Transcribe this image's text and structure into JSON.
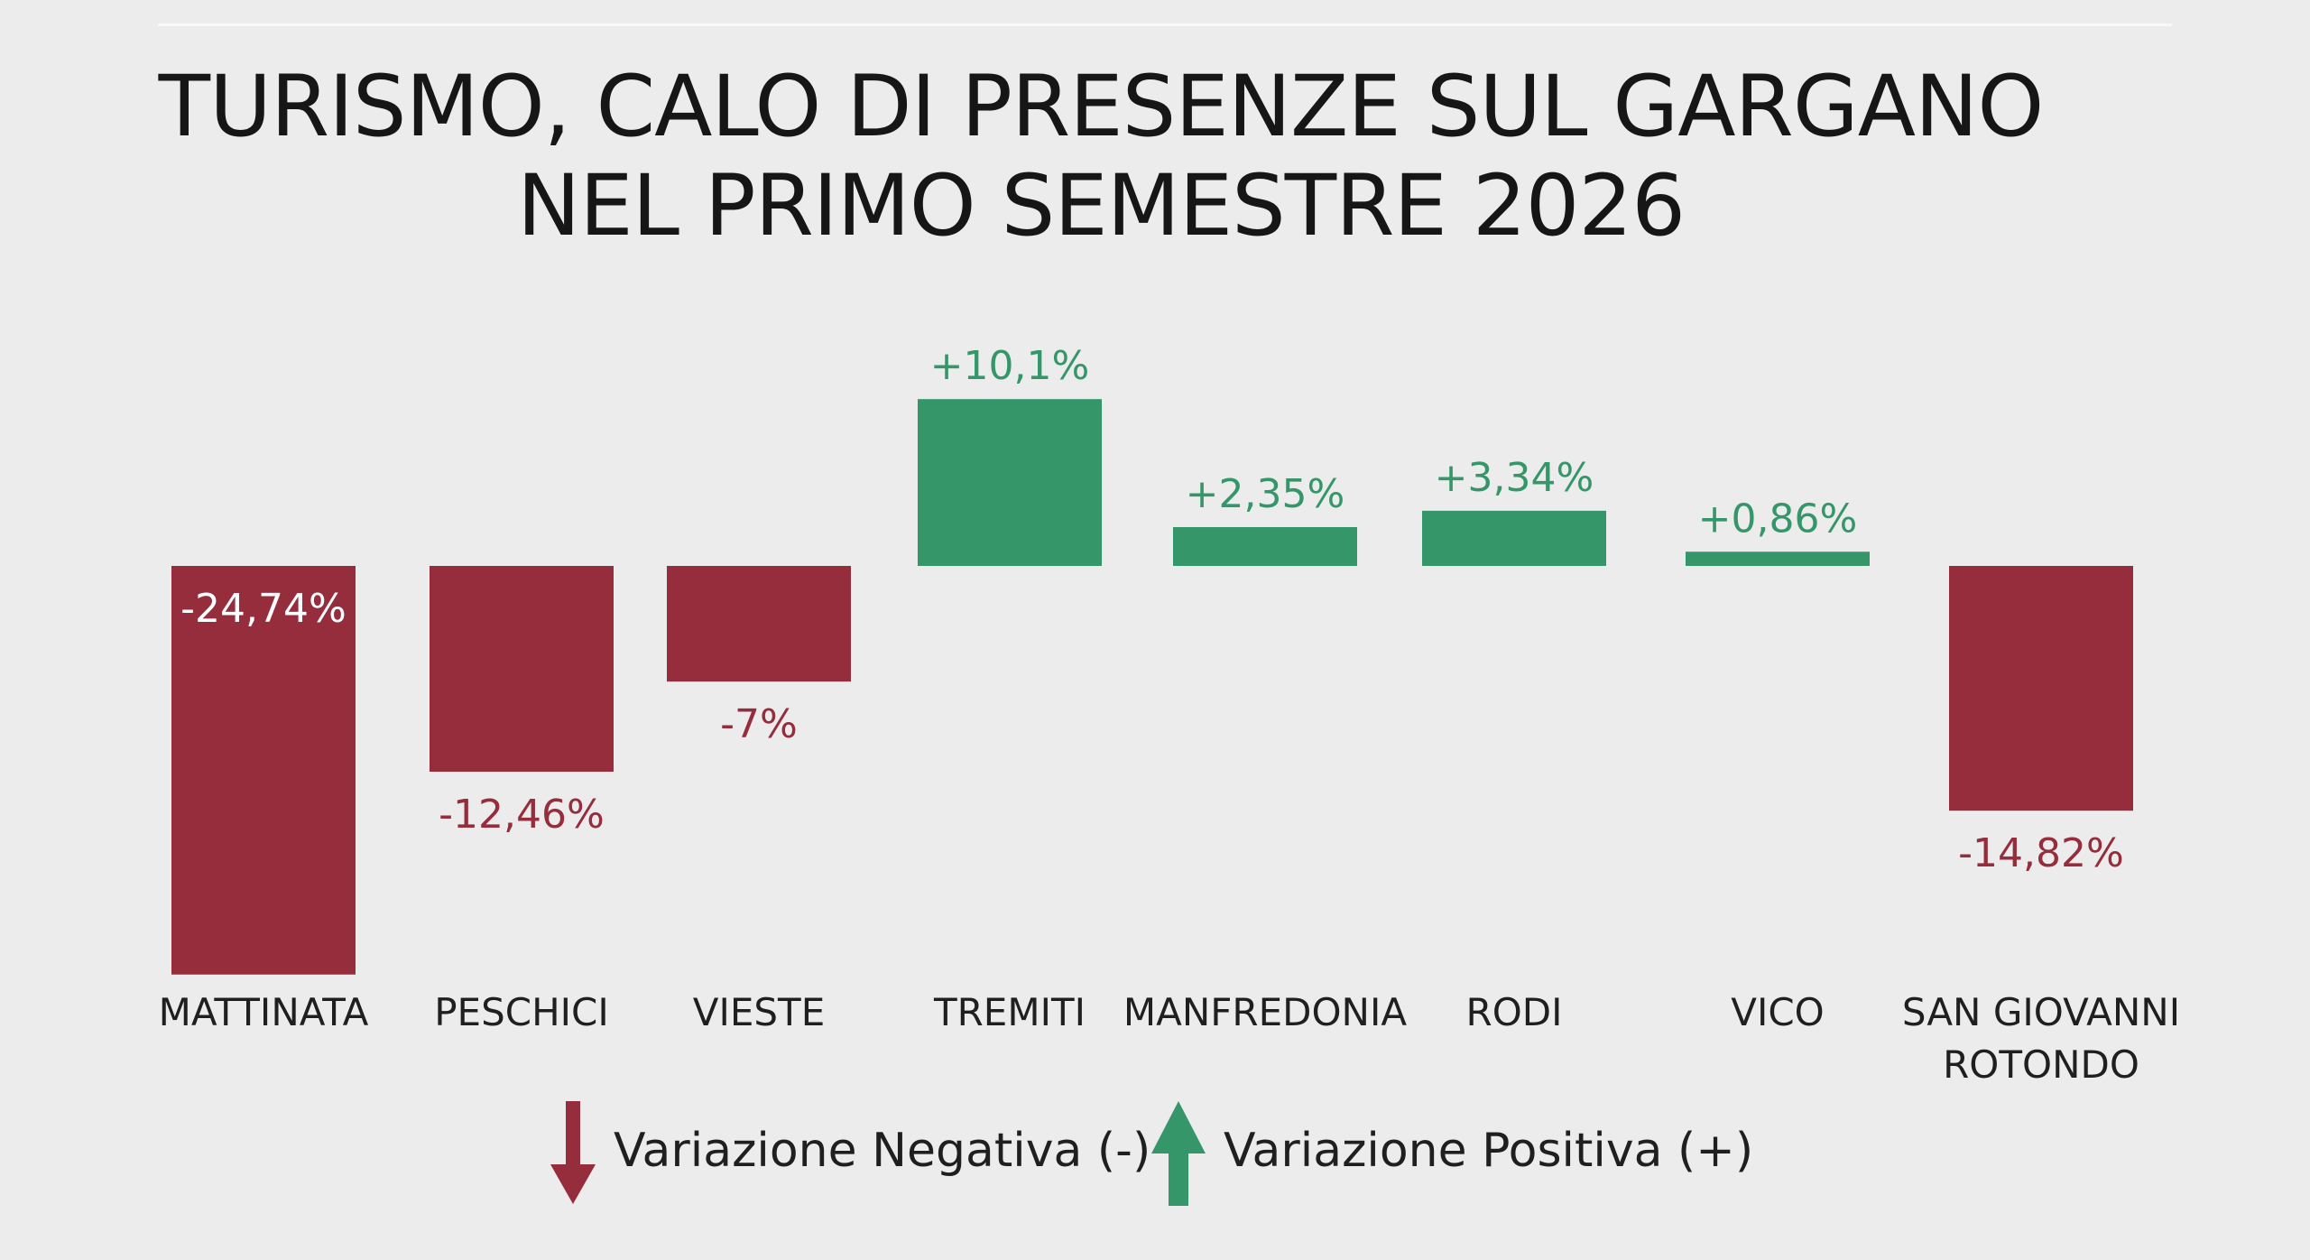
{
  "title_lines": [
    "TURISMO, CALO DI PRESENZE SUL GARGANO",
    "NEL PRIMO SEMESTRE 2026"
  ],
  "colors": {
    "negative": "#952d3d",
    "positive": "#35966a",
    "background": "#ececec",
    "text": "#1f1f1f"
  },
  "legend": [
    {
      "label": "Variazione Negativa (-)",
      "icon": "arrow-down-icon",
      "color": "#952d3d"
    },
    {
      "label": "Variazione Positiva (+)",
      "icon": "arrow-up-icon",
      "color": "#35966a"
    }
  ],
  "chart_data": {
    "type": "bar",
    "title": "TURISMO, CALO DI PRESENZE SUL GARGANO NEL PRIMO SEMESTRE 2026",
    "unit": "%",
    "categories": [
      [
        "MATTINATA"
      ],
      [
        "PESCHICI"
      ],
      [
        "VIESTE"
      ],
      [
        "TREMITI"
      ],
      [
        "MANFREDONIA"
      ],
      [
        "RODI"
      ],
      [
        "VICO"
      ],
      [
        "SAN GIOVANNI",
        "ROTONDO"
      ]
    ],
    "values": [
      -24.74,
      -12.46,
      -7,
      10.1,
      2.35,
      3.34,
      0.86,
      -14.82
    ],
    "data_labels": [
      "-24,74%",
      "-12,46%",
      "-7%",
      "+10,1%",
      "+2,35%",
      "+3,34%",
      "+0,86%",
      "-14,82%"
    ],
    "grid": false,
    "axes_visible": false,
    "legend_position": "bottom-center"
  }
}
